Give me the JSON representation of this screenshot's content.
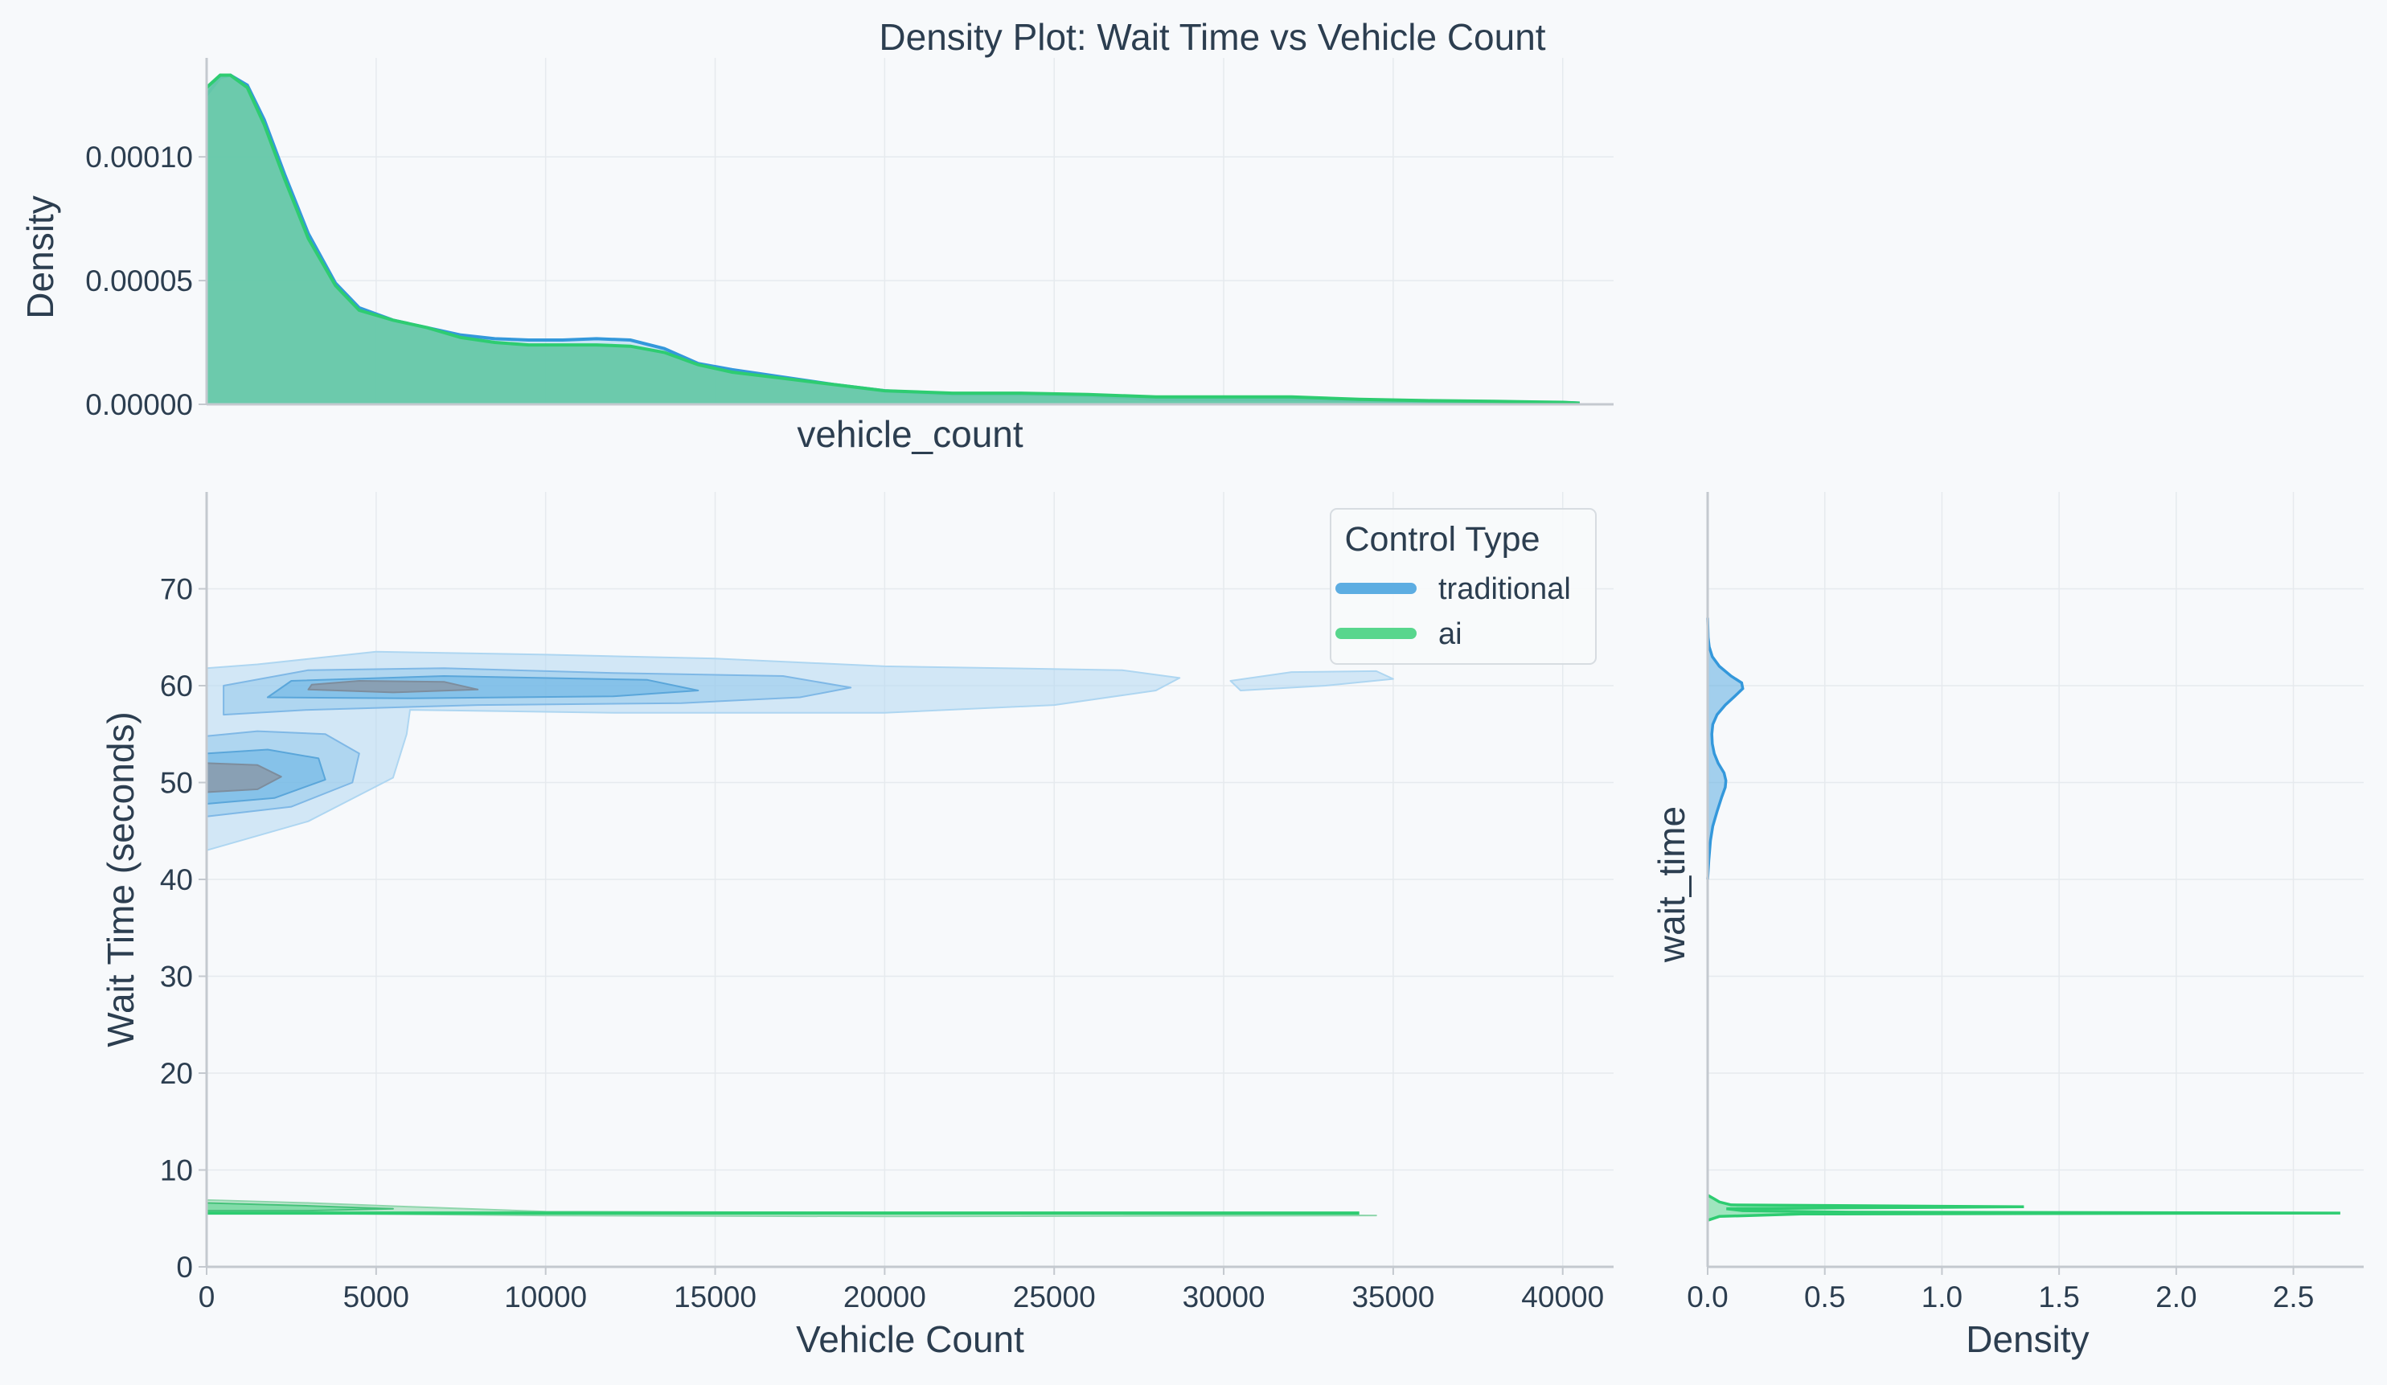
{
  "chart_data": {
    "type": "kde-jointplot",
    "title": "Density Plot: Wait Time vs Vehicle Count",
    "legend": {
      "title": "Control Type",
      "placement": "top-right",
      "entries": [
        {
          "label": "traditional",
          "color": "#5dade2"
        },
        {
          "label": "ai",
          "color": "#58d68d"
        }
      ]
    },
    "colors": {
      "traditional_line": "#3498db",
      "traditional_fill": "#aed6f1",
      "traditional_core": "#8a9aaa",
      "ai_line": "#2ecc71",
      "ai_fill": "#66c8a8"
    },
    "joint": {
      "xlabel": "Vehicle Count",
      "ylabel": "Wait Time (seconds)",
      "xlim": [
        0,
        41500
      ],
      "ylim": [
        0,
        80
      ],
      "xticks": [
        0,
        5000,
        10000,
        15000,
        20000,
        25000,
        30000,
        35000,
        40000
      ],
      "yticks": [
        0,
        10,
        20,
        30,
        40,
        50,
        60,
        70
      ],
      "series": [
        {
          "name": "traditional",
          "regions": [
            {
              "level": "outer",
              "points": [
                [
                  0,
                  43
                ],
                [
                  3000,
                  46
                ],
                [
                  5500,
                  50.5
                ],
                [
                  5900,
                  55
                ],
                [
                  6000,
                  57.5
                ],
                [
                  12000,
                  57.2
                ],
                [
                  20000,
                  57.2
                ],
                [
                  25000,
                  58
                ],
                [
                  28000,
                  59.5
                ],
                [
                  28700,
                  60.8
                ],
                [
                  27000,
                  61.6
                ],
                [
                  20000,
                  62
                ],
                [
                  15000,
                  62.8
                ],
                [
                  10000,
                  63.2
                ],
                [
                  5000,
                  63.5
                ],
                [
                  1500,
                  62.2
                ],
                [
                  0,
                  61.8
                ]
              ]
            },
            {
              "level": "outer",
              "points": [
                [
                  30500,
                  59.5
                ],
                [
                  33000,
                  60
                ],
                [
                  35000,
                  60.7
                ],
                [
                  34500,
                  61.5
                ],
                [
                  32000,
                  61.4
                ],
                [
                  30200,
                  60.5
                ]
              ]
            },
            {
              "level": "mid",
              "points": [
                [
                  500,
                  57
                ],
                [
                  3000,
                  57.5
                ],
                [
                  8000,
                  58
                ],
                [
                  14000,
                  58.2
                ],
                [
                  17500,
                  58.8
                ],
                [
                  19000,
                  59.8
                ],
                [
                  17000,
                  61
                ],
                [
                  12000,
                  61.3
                ],
                [
                  7000,
                  61.8
                ],
                [
                  3000,
                  61.6
                ],
                [
                  500,
                  60
                ]
              ]
            },
            {
              "level": "mid",
              "points": [
                [
                  0,
                  46.5
                ],
                [
                  2500,
                  47.5
                ],
                [
                  4300,
                  50
                ],
                [
                  4500,
                  53
                ],
                [
                  3500,
                  55
                ],
                [
                  1500,
                  55.3
                ],
                [
                  0,
                  54.8
                ]
              ]
            },
            {
              "level": "inner",
              "points": [
                [
                  1800,
                  58.8
                ],
                [
                  6000,
                  58.7
                ],
                [
                  12000,
                  58.9
                ],
                [
                  14500,
                  59.5
                ],
                [
                  13000,
                  60.6
                ],
                [
                  7000,
                  61
                ],
                [
                  2500,
                  60.5
                ]
              ]
            },
            {
              "level": "inner",
              "points": [
                [
                  0,
                  47.8
                ],
                [
                  2000,
                  48.4
                ],
                [
                  3500,
                  50.3
                ],
                [
                  3300,
                  52.5
                ],
                [
                  1800,
                  53.4
                ],
                [
                  0,
                  53
                ]
              ]
            },
            {
              "level": "core",
              "points": [
                [
                  3000,
                  59.6
                ],
                [
                  5500,
                  59.3
                ],
                [
                  8000,
                  59.6
                ],
                [
                  7000,
                  60.4
                ],
                [
                  4500,
                  60.5
                ],
                [
                  3100,
                  60.1
                ]
              ]
            },
            {
              "level": "core",
              "points": [
                [
                  0,
                  49
                ],
                [
                  1500,
                  49.3
                ],
                [
                  2200,
                  50.6
                ],
                [
                  1500,
                  51.8
                ],
                [
                  0,
                  52
                ]
              ]
            }
          ]
        },
        {
          "name": "ai",
          "regions": [
            {
              "level": "outer",
              "points": [
                [
                  0,
                  5.6
                ],
                [
                  10000,
                  5.3
                ],
                [
                  20000,
                  5.2
                ],
                [
                  34500,
                  5.3
                ],
                [
                  20000,
                  5.6
                ],
                [
                  10000,
                  5.7
                ],
                [
                  6000,
                  6.2
                ],
                [
                  3000,
                  6.6
                ],
                [
                  0,
                  6.9
                ]
              ]
            },
            {
              "level": "mid",
              "points": [
                [
                  0,
                  5.8
                ],
                [
                  3000,
                  5.8
                ],
                [
                  5500,
                  6.0
                ],
                [
                  3000,
                  6.3
                ],
                [
                  0,
                  6.6
                ]
              ]
            },
            {
              "level": "line",
              "points": [
                [
                  0,
                  5.55
                ],
                [
                  34000,
                  5.55
                ]
              ]
            }
          ]
        }
      ]
    },
    "top_marginal": {
      "xlabel": "vehicle_count",
      "ylabel": "Density",
      "ylim": [
        0,
        0.00014
      ],
      "yticks": [
        "0.00000",
        "0.00005",
        "0.00010"
      ],
      "ytick_values": [
        0,
        5e-05,
        0.0001
      ],
      "series": [
        {
          "name": "traditional",
          "x": [
            0,
            400,
            700,
            1200,
            1700,
            2300,
            3000,
            3800,
            4500,
            5500,
            6500,
            7500,
            8500,
            9500,
            10500,
            11500,
            12500,
            13500,
            14500,
            15500,
            17000,
            18500,
            20000,
            22000,
            24000,
            26000,
            28000,
            30000,
            32000,
            34000,
            36000,
            38000,
            40000,
            40500
          ],
          "y": [
            0.000125,
            0.000132,
            0.000133,
            0.000129,
            0.000115,
            9.3e-05,
            6.9e-05,
            4.9e-05,
            3.9e-05,
            3.4e-05,
            3.1e-05,
            2.8e-05,
            2.65e-05,
            2.6e-05,
            2.6e-05,
            2.65e-05,
            2.6e-05,
            2.25e-05,
            1.65e-05,
            1.4e-05,
            1.1e-05,
            8e-06,
            5.5e-06,
            4e-06,
            4e-06,
            3.5e-06,
            2e-06,
            2e-06,
            2e-06,
            1.5e-06,
            1.2e-06,
            1e-06,
            7e-07,
            5e-07
          ]
        },
        {
          "name": "ai",
          "x": [
            0,
            400,
            700,
            1200,
            1700,
            2300,
            3000,
            3800,
            4500,
            5500,
            6500,
            7500,
            8500,
            9500,
            10500,
            11500,
            12500,
            13500,
            14500,
            15500,
            17000,
            18500,
            20000,
            22000,
            24000,
            26000,
            28000,
            30000,
            32000,
            34000,
            36000,
            38000,
            40000,
            40500
          ],
          "y": [
            0.000128,
            0.000133,
            0.000133,
            0.000128,
            0.000113,
            9.1e-05,
            6.7e-05,
            4.8e-05,
            3.8e-05,
            3.4e-05,
            3.1e-05,
            2.7e-05,
            2.5e-05,
            2.4e-05,
            2.4e-05,
            2.4e-05,
            2.35e-05,
            2.1e-05,
            1.6e-05,
            1.3e-05,
            1.05e-05,
            8e-06,
            5.5e-06,
            4.5e-06,
            4.5e-06,
            4e-06,
            3e-06,
            3e-06,
            3e-06,
            2e-06,
            1.5e-06,
            1.2e-06,
            8e-07,
            5e-07
          ]
        }
      ]
    },
    "right_marginal": {
      "xlabel": "Density",
      "ylabel": "wait_time",
      "xlim": [
        0,
        2.8
      ],
      "xticks": [
        "0.0",
        "0.5",
        "1.0",
        "1.5",
        "2.0",
        "2.5"
      ],
      "xtick_values": [
        0,
        0.5,
        1.0,
        1.5,
        2.0,
        2.5
      ],
      "series": [
        {
          "name": "traditional",
          "y": [
            40,
            42,
            44,
            45.5,
            47,
            48.5,
            49.5,
            50.2,
            51,
            52,
            53,
            54,
            55,
            56,
            57,
            58,
            59,
            59.7,
            60.3,
            61,
            62,
            63,
            64,
            65,
            67
          ],
          "x": [
            0,
            0.005,
            0.012,
            0.022,
            0.04,
            0.06,
            0.075,
            0.078,
            0.07,
            0.045,
            0.028,
            0.02,
            0.018,
            0.022,
            0.04,
            0.075,
            0.12,
            0.15,
            0.145,
            0.1,
            0.05,
            0.02,
            0.007,
            0.002,
            0
          ]
        },
        {
          "name": "ai",
          "y": [
            4.8,
            5.2,
            5.45,
            5.55,
            5.65,
            5.8,
            6.0,
            6.2,
            6.4,
            6.7,
            7.0,
            7.4
          ],
          "x": [
            0,
            0.05,
            0.4,
            2.7,
            0.6,
            0.15,
            0.08,
            1.35,
            0.1,
            0.05,
            0.03,
            0
          ]
        }
      ]
    }
  }
}
